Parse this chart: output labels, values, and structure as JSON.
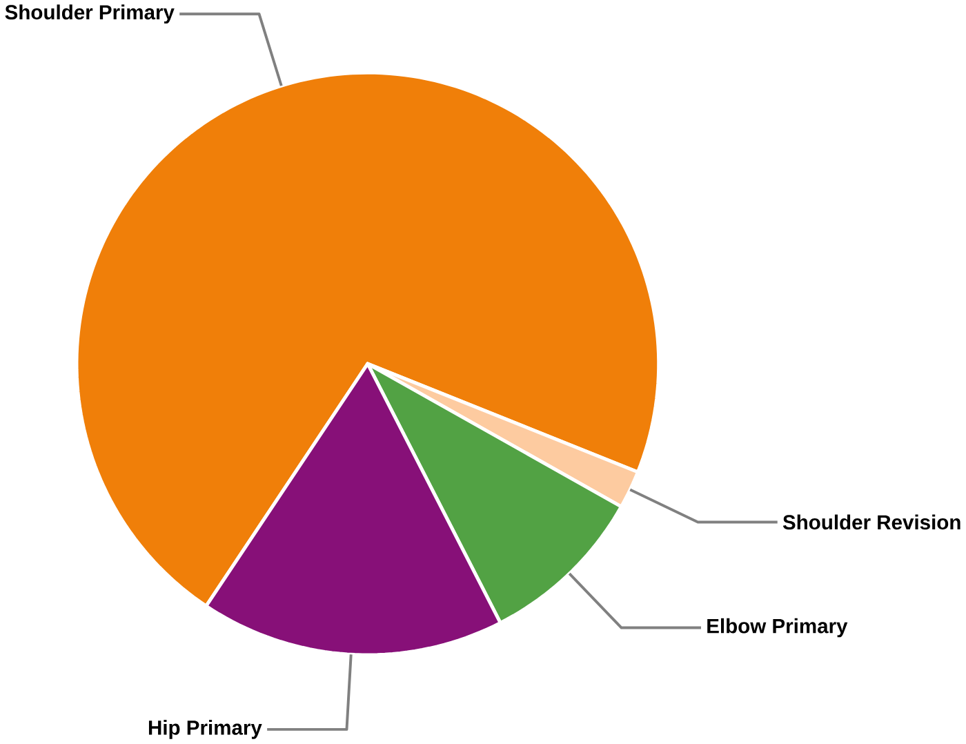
{
  "chart_data": {
    "type": "pie",
    "categories": [
      "Shoulder Primary",
      "Shoulder Revision",
      "Elbow Primary",
      "Hip Primary"
    ],
    "values": [
      71.7,
      2.1,
      9.3,
      16.9
    ],
    "colors": [
      "#f07f09",
      "#fdcba0",
      "#52a244",
      "#871078"
    ]
  }
}
